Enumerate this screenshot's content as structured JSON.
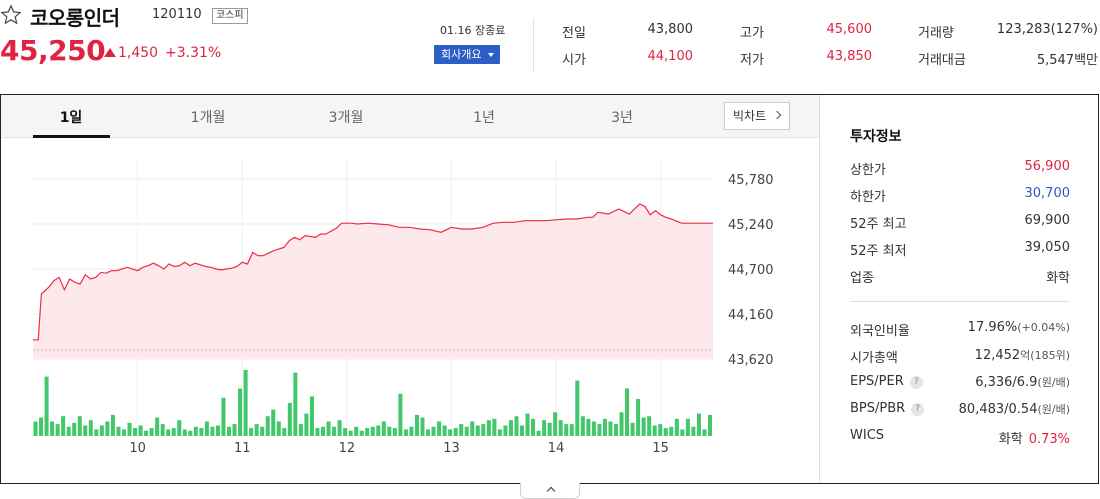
{
  "header": {
    "name": "코오롱인더",
    "code": "120110",
    "market": "코스피",
    "price": "45,250",
    "change_amount": "1,450",
    "change_rate": "+3.31%",
    "market_status": "01.16 장종료",
    "company_button": "회사개요"
  },
  "quote": [
    {
      "label": "전일",
      "value": "43,800",
      "color": "#333333"
    },
    {
      "label": "시가",
      "value": "44,100",
      "color": "#e12343"
    },
    {
      "label": "고가",
      "value": "45,600",
      "color": "#e12343"
    },
    {
      "label": "저가",
      "value": "43,850",
      "color": "#e12343"
    },
    {
      "label": "거래량",
      "value": "123,283(127%)",
      "color": "#333333"
    },
    {
      "label": "거래대금",
      "value": "5,547백만",
      "color": "#333333"
    }
  ],
  "tabs": [
    "1일",
    "1개월",
    "3개월",
    "1년",
    "3년"
  ],
  "active_tab": "1일",
  "big_chart_label": "빅차트",
  "chart_data": {
    "type": "line",
    "title": "",
    "xlabel": "",
    "ylabel": "",
    "ylim": [
      43620,
      45780
    ],
    "y_ticks": [
      "45,780",
      "45,240",
      "44,700",
      "44,160",
      "43,620"
    ],
    "x_tick_labels": [
      "10",
      "11",
      "12",
      "13",
      "14",
      "15"
    ],
    "x_range_hours": [
      9,
      15.5
    ],
    "baseline_prev_close": 43800,
    "series": [
      {
        "x": [
          9.0,
          9.05,
          9.08,
          9.15,
          9.2,
          9.25,
          9.3,
          9.35,
          9.4,
          9.45,
          9.5,
          9.55,
          9.6,
          9.65,
          9.7,
          9.75,
          9.8,
          9.85,
          9.9,
          9.95,
          10.0,
          10.05,
          10.1,
          10.15,
          10.2,
          10.25,
          10.3,
          10.35,
          10.4,
          10.45,
          10.5,
          10.55,
          10.6,
          10.65,
          10.7,
          10.75,
          10.8,
          10.85,
          10.9,
          10.95,
          11.0,
          11.05,
          11.1,
          11.15,
          11.2,
          11.3,
          11.4,
          11.45,
          11.5,
          11.55,
          11.6,
          11.7,
          11.75,
          11.8,
          11.9,
          11.95,
          12.0,
          12.05,
          12.1,
          12.2,
          12.3,
          12.4,
          12.5,
          12.6,
          12.7,
          12.8,
          12.9,
          13.0,
          13.1,
          13.2,
          13.3,
          13.4,
          13.5,
          13.6,
          13.7,
          13.8,
          13.9,
          14.0,
          14.1,
          14.2,
          14.3,
          14.35,
          14.4,
          14.5,
          14.6,
          14.7,
          14.75,
          14.8,
          14.85,
          14.9,
          14.95,
          15.0,
          15.05,
          15.1,
          15.2,
          15.3,
          15.4,
          15.45,
          15.5
        ],
        "y": [
          43850,
          43850,
          44400,
          44480,
          44560,
          44600,
          44450,
          44580,
          44540,
          44520,
          44630,
          44580,
          44600,
          44660,
          44650,
          44680,
          44680,
          44700,
          44720,
          44700,
          44680,
          44720,
          44740,
          44770,
          44740,
          44700,
          44760,
          44730,
          44740,
          44780,
          44740,
          44770,
          44750,
          44730,
          44720,
          44700,
          44690,
          44700,
          44710,
          44730,
          44780,
          44760,
          44900,
          44860,
          44860,
          44920,
          44960,
          45040,
          45080,
          45050,
          45100,
          45080,
          45120,
          45120,
          45190,
          45250,
          45250,
          45250,
          45240,
          45250,
          45240,
          45230,
          45200,
          45200,
          45180,
          45170,
          45140,
          45200,
          45180,
          45180,
          45200,
          45250,
          45260,
          45260,
          45280,
          45280,
          45280,
          45290,
          45300,
          45300,
          45320,
          45320,
          45380,
          45360,
          45420,
          45360,
          45420,
          45480,
          45450,
          45350,
          45400,
          45350,
          45320,
          45300,
          45250,
          45250,
          45250,
          45250,
          45250
        ],
        "line_color": "#ee2a44",
        "fill_color": "#fde9ec"
      }
    ],
    "volume_bars": [
      22,
      28,
      90,
      22,
      18,
      30,
      14,
      20,
      30,
      16,
      24,
      10,
      16,
      22,
      32,
      14,
      10,
      20,
      12,
      16,
      8,
      12,
      28,
      18,
      10,
      12,
      24,
      10,
      8,
      14,
      12,
      22,
      14,
      16,
      58,
      14,
      18,
      72,
      100,
      12,
      18,
      14,
      30,
      40,
      22,
      12,
      50,
      96,
      18,
      34,
      60,
      12,
      14,
      22,
      14,
      24,
      12,
      8,
      14,
      8,
      12,
      14,
      16,
      22,
      14,
      12,
      64,
      10,
      14,
      32,
      28,
      10,
      14,
      22,
      16,
      10,
      12,
      18,
      14,
      22,
      16,
      18,
      24,
      26,
      10,
      16,
      24,
      30,
      16,
      34,
      26,
      8,
      24,
      20,
      36,
      24,
      18,
      18,
      84,
      30,
      26,
      22,
      18,
      26,
      22,
      18,
      36,
      72,
      20,
      56,
      28,
      30,
      16,
      18,
      12,
      14,
      26,
      10,
      26,
      14,
      34,
      10,
      32
    ]
  },
  "invest_info": {
    "title": "투자정보",
    "rows": [
      {
        "label": "상한가",
        "value": "56,900",
        "color": "red"
      },
      {
        "label": "하한가",
        "value": "30,700",
        "color": "blue"
      },
      {
        "label": "52주 최고",
        "value": "69,900",
        "color": ""
      },
      {
        "label": "52주 최저",
        "value": "39,050",
        "color": ""
      },
      {
        "label": "업종",
        "value": "화학",
        "color": ""
      }
    ],
    "rows2": [
      {
        "label": "외국인비율",
        "value": "17.96%",
        "sub": "(+0.04%)",
        "help": false
      },
      {
        "label": "시가총액",
        "value": "12,452",
        "sub": "억(185위)",
        "help": false
      },
      {
        "label": "EPS/PER",
        "value": "6,336/6.9",
        "sub": "(원/배)",
        "help": true
      },
      {
        "label": "BPS/PBR",
        "value": "80,483/0.54",
        "sub": "(원/배)",
        "help": true
      },
      {
        "label": "WICS",
        "value": "화학",
        "sub": "0.73%",
        "help": false
      }
    ]
  }
}
